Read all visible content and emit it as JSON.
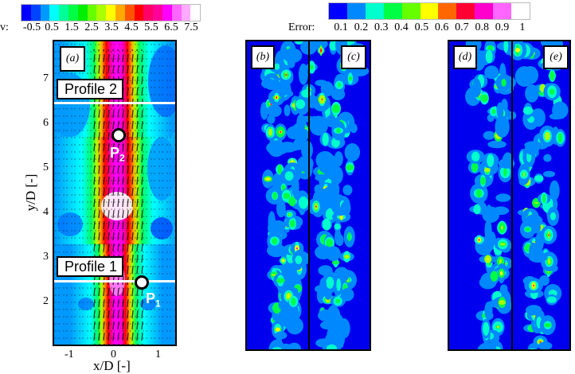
{
  "chart_data": [
    {
      "type": "heatmap",
      "panel": "(a)",
      "title": "",
      "xlabel": "x/D [-]",
      "ylabel": "y/D [-]",
      "xticks": [
        -1,
        0,
        1
      ],
      "yticks": [
        2,
        3,
        4,
        5,
        6,
        7
      ],
      "xlim": [
        -1.4,
        1.4
      ],
      "ylim": [
        1.0,
        7.85
      ],
      "colorbar": {
        "label": "v:",
        "ticks": [
          -0.5,
          0.5,
          1.5,
          2.5,
          3.5,
          4.5,
          5.5,
          6.5,
          7.5
        ],
        "colors": [
          "#0000ff",
          "#0044ff",
          "#0099ff",
          "#00ffff",
          "#00ff99",
          "#00ff44",
          "#00ee00",
          "#66ff00",
          "#aaff00",
          "#ffff00",
          "#ffaa00",
          "#ff5500",
          "#ff0000",
          "#ff0066",
          "#ff0099",
          "#ff00ff",
          "#ff66ff",
          "#ffaaff",
          "#ffffff"
        ]
      },
      "annotations": [
        {
          "text": "Profile 1",
          "y": 2.5
        },
        {
          "text": "Profile 2",
          "y": 6.5
        },
        {
          "text": "P1",
          "x": 0.55,
          "y": 2.45
        },
        {
          "text": "P2",
          "x": 0.05,
          "y": 5.8
        }
      ],
      "description": "Vertical velocity jet contour centered at x/D=0 with velocity vectors; peak (~7.5) near y/D=4"
    },
    {
      "type": "heatmap",
      "panels": [
        "(b)",
        "(c)",
        "(d)",
        "(e)"
      ],
      "colorbar": {
        "label": "Error:",
        "ticks": [
          0.1,
          0.2,
          0.3,
          0.4,
          0.5,
          0.6,
          0.7,
          0.8,
          0.9,
          1
        ],
        "colors": [
          "#0000ff",
          "#0088ff",
          "#00ffcc",
          "#00ff44",
          "#66ff00",
          "#ffff00",
          "#ff6600",
          "#ff0033",
          "#ff00cc",
          "#ff66ff",
          "#ffffff"
        ]
      },
      "description": "Error field contour maps; mostly blue (<0.1) background with scattered green/yellow/red patches along the jet"
    }
  ],
  "colorbar_v": {
    "label": "v:",
    "ticks": [
      "-0.5",
      "0.5",
      "1.5",
      "2.5",
      "3.5",
      "4.5",
      "5.5",
      "6.5",
      "7.5"
    ],
    "colors": [
      "#0000ff",
      "#0044ff",
      "#0099ff",
      "#00ffff",
      "#00ff99",
      "#00ff44",
      "#00ee00",
      "#66ff00",
      "#aaff00",
      "#ffff00",
      "#ffaa00",
      "#ff5500",
      "#ff0000",
      "#ff0066",
      "#ff0099",
      "#ff00ff",
      "#ff66ff",
      "#ffaaff",
      "#ffffff"
    ]
  },
  "colorbar_err": {
    "label": "Error:",
    "ticks": [
      "0.1",
      "0.2",
      "0.3",
      "0.4",
      "0.5",
      "0.6",
      "0.7",
      "0.8",
      "0.9",
      "1"
    ],
    "colors": [
      "#0000ff",
      "#0088ff",
      "#00ffcc",
      "#00ff44",
      "#66ff00",
      "#ffff00",
      "#ff6600",
      "#ff0033",
      "#ff00cc",
      "#ff66ff",
      "#ffffff"
    ]
  },
  "panel_a": {
    "tag": "(a)",
    "xlabel": "x/D [-]",
    "ylabel": "y/D [-]",
    "xticks": [
      "-1",
      "0",
      "1"
    ],
    "yticks": [
      "7",
      "6",
      "5",
      "4",
      "3",
      "2"
    ],
    "profile1": "Profile 1",
    "profile2": "Profile 2",
    "p1": "P",
    "p1_sub": "1",
    "p2": "P",
    "p2_sub": "2"
  },
  "panel_b": {
    "tag": "(b)"
  },
  "panel_c": {
    "tag": "(c)"
  },
  "panel_d": {
    "tag": "(d)"
  },
  "panel_e": {
    "tag": "(e)"
  }
}
